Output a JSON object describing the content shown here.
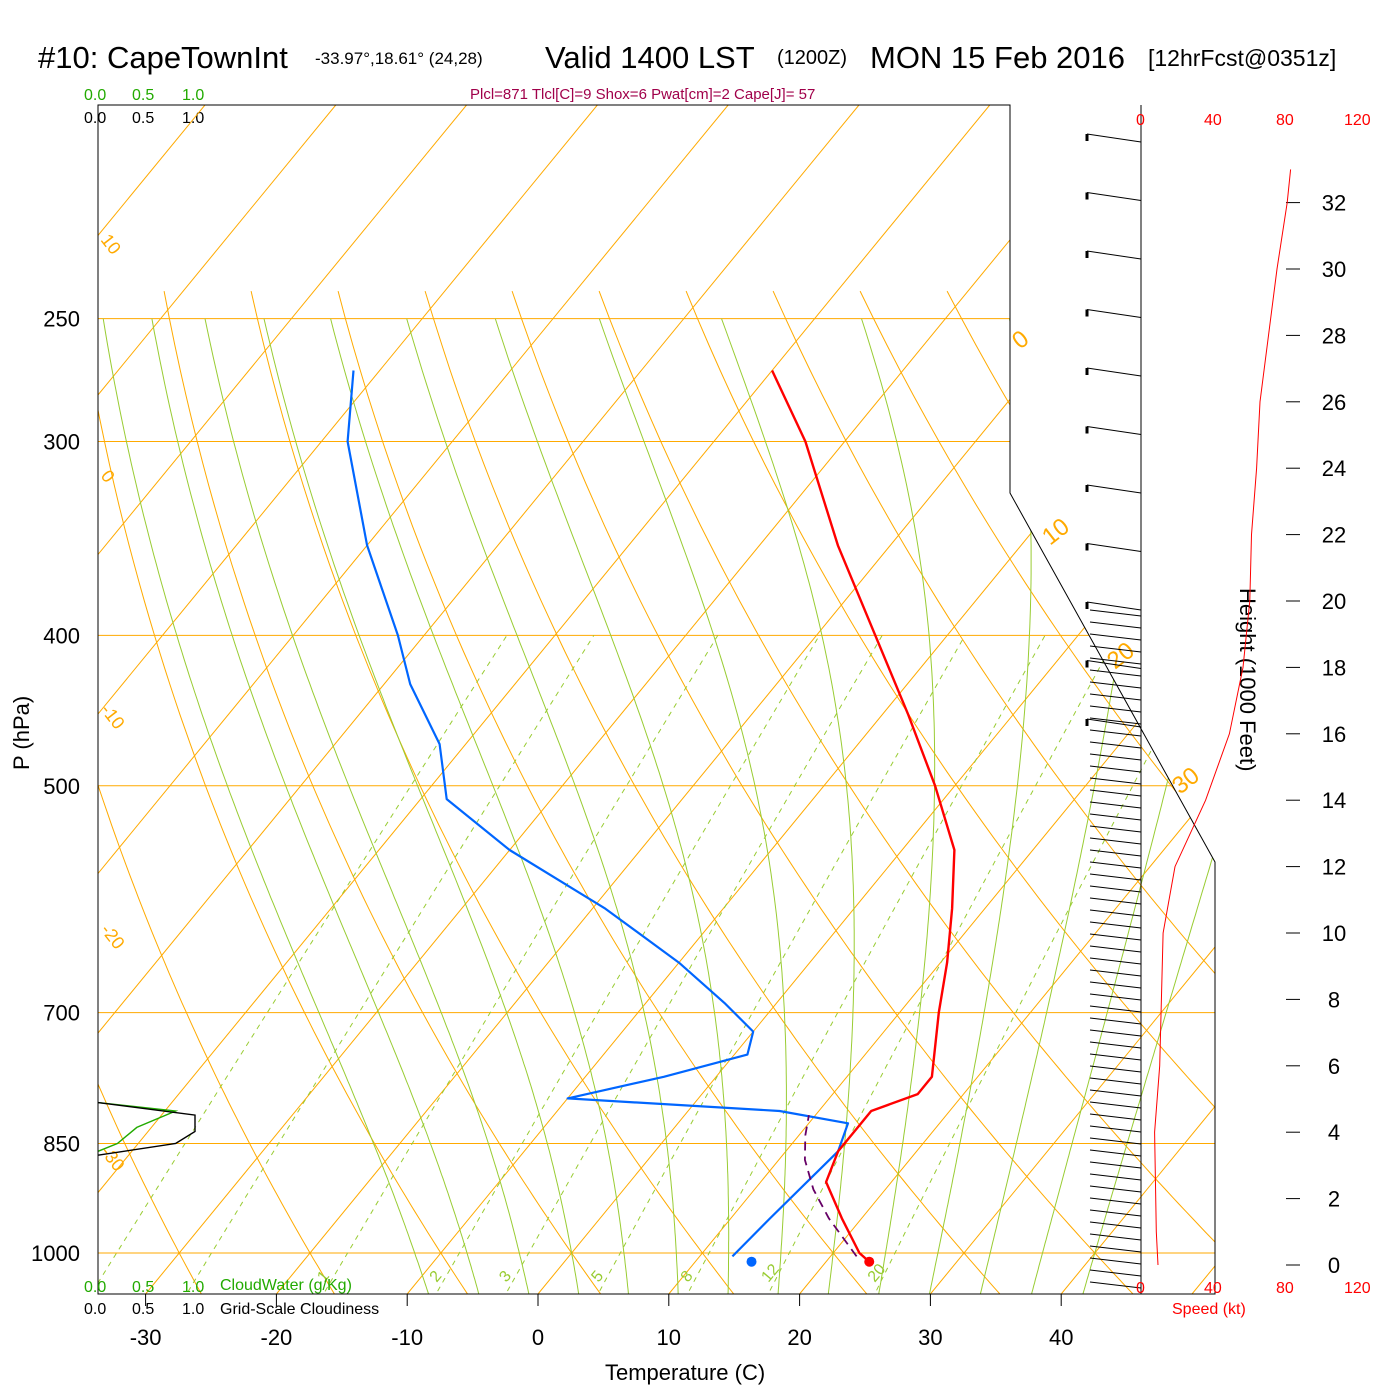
{
  "header": {
    "station": "#10: CapeTownInt",
    "coords": "-33.97°,18.61° (24,28)",
    "valid": "Valid 1400 LST",
    "zulu": "(1200Z)",
    "date": "MON 15 Feb 2016",
    "forecast": "[12hrFcst@0351z]",
    "params": "Plcl=871 Tlcl[C]=9 Shox=6 Pwat[cm]=2 Cape[J]= 57"
  },
  "colors": {
    "temperature": "#ff0000",
    "dewpoint": "#0066ff",
    "parcel": "#660066",
    "isotherm": "#ffaa00",
    "dry_adiabat": "#ffaa00",
    "moist_adiabat": "#99cc33",
    "mixing_ratio": "#99cc33",
    "cloud_water": "#22aa00",
    "cloudiness": "#000000",
    "speed": "#ff0000"
  },
  "top_scale": {
    "green": [
      "0.0",
      "0.5",
      "1.0"
    ],
    "black": [
      "0.0",
      "0.5",
      "1.0"
    ]
  },
  "bottom_scale": {
    "green": [
      "0.0",
      "0.5",
      "1.0"
    ],
    "black": [
      "0.0",
      "0.5",
      "1.0"
    ],
    "cloudwater_label": "CloudWater (g/Kg)",
    "cloudiness_label": "Grid-Scale Cloudiness"
  },
  "speed_scale": {
    "ticks": [
      "0",
      "40",
      "80",
      "120"
    ],
    "label": "Speed (kt)"
  },
  "isotherm_labels": [
    "10",
    "0",
    "-10",
    "-20",
    "-30",
    "0",
    "10",
    "20",
    "30"
  ],
  "mixing_ratio_labels": [
    "1",
    "2",
    "3",
    "5",
    "8",
    "12",
    "20"
  ],
  "chart_data": {
    "type": "line",
    "subtype": "skew-T log-P",
    "xlabel": "Temperature (C)",
    "ylabel": "P (hPa)",
    "y2label": "Height (1000 Feet)",
    "x_ticks": [
      -30,
      -20,
      -10,
      0,
      10,
      20,
      30,
      40
    ],
    "p_ticks": [
      250,
      300,
      400,
      500,
      700,
      850,
      1000
    ],
    "height_ticks": [
      0,
      2,
      4,
      6,
      8,
      10,
      12,
      14,
      16,
      18,
      20,
      22,
      24,
      26,
      28,
      30,
      32
    ],
    "temperature_profile": [
      {
        "p": 1013,
        "t": 23.3
      },
      {
        "p": 1000,
        "t": 22.0
      },
      {
        "p": 950,
        "t": 18.5
      },
      {
        "p": 900,
        "t": 15.0
      },
      {
        "p": 860,
        "t": 14.0
      },
      {
        "p": 810,
        "t": 14.0
      },
      {
        "p": 790,
        "t": 16.5
      },
      {
        "p": 770,
        "t": 16.5
      },
      {
        "p": 700,
        "t": 13.0
      },
      {
        "p": 650,
        "t": 10.5
      },
      {
        "p": 600,
        "t": 7.5
      },
      {
        "p": 550,
        "t": 4.0
      },
      {
        "p": 500,
        "t": -1.5
      },
      {
        "p": 450,
        "t": -8.0
      },
      {
        "p": 400,
        "t": -15.5
      },
      {
        "p": 350,
        "t": -24.0
      },
      {
        "p": 300,
        "t": -33.0
      },
      {
        "p": 270,
        "t": -40.0
      }
    ],
    "dewpoint_profile": [
      {
        "p": 1005,
        "t": 12.5
      },
      {
        "p": 950,
        "t": 13.0
      },
      {
        "p": 860,
        "t": 14.0
      },
      {
        "p": 825,
        "t": 13.0
      },
      {
        "p": 810,
        "t": 7.0
      },
      {
        "p": 795,
        "t": -10.0
      },
      {
        "p": 770,
        "t": -4.0
      },
      {
        "p": 745,
        "t": 1.0
      },
      {
        "p": 720,
        "t": 0.0
      },
      {
        "p": 690,
        "t": -4.0
      },
      {
        "p": 650,
        "t": -10.0
      },
      {
        "p": 600,
        "t": -19.0
      },
      {
        "p": 550,
        "t": -30.0
      },
      {
        "p": 510,
        "t": -38.0
      },
      {
        "p": 470,
        "t": -42.0
      },
      {
        "p": 430,
        "t": -48.0
      },
      {
        "p": 400,
        "t": -52.0
      },
      {
        "p": 350,
        "t": -60.0
      },
      {
        "p": 300,
        "t": -68.0
      },
      {
        "p": 270,
        "t": -72.0
      }
    ],
    "parcel_profile": [
      {
        "p": 1005,
        "t": 22.0
      },
      {
        "p": 950,
        "t": 17.5
      },
      {
        "p": 910,
        "t": 14.5
      },
      {
        "p": 871,
        "t": 12.0
      },
      {
        "p": 840,
        "t": 10.5
      },
      {
        "p": 815,
        "t": 9.5
      }
    ],
    "surface_temperature": {
      "p": 1013,
      "t": 23.3
    },
    "surface_dewpoint": {
      "p": 1013,
      "t": 14.3
    },
    "wind_speed_profile": [
      {
        "h": 0,
        "kt": 10
      },
      {
        "h": 1,
        "kt": 9
      },
      {
        "h": 4,
        "kt": 8
      },
      {
        "h": 6,
        "kt": 11
      },
      {
        "h": 8,
        "kt": 12
      },
      {
        "h": 10,
        "kt": 13
      },
      {
        "h": 12,
        "kt": 20
      },
      {
        "h": 14,
        "kt": 38
      },
      {
        "h": 16,
        "kt": 52
      },
      {
        "h": 18,
        "kt": 60
      },
      {
        "h": 20,
        "kt": 64
      },
      {
        "h": 22,
        "kt": 65
      },
      {
        "h": 24,
        "kt": 68
      },
      {
        "h": 26,
        "kt": 70
      },
      {
        "h": 28,
        "kt": 75
      },
      {
        "h": 30,
        "kt": 80
      },
      {
        "h": 32,
        "kt": 86
      },
      {
        "h": 33,
        "kt": 88
      }
    ],
    "cloud_water_profile": [
      {
        "p": 800,
        "v": 0.0
      },
      {
        "p": 810,
        "v": 0.8
      },
      {
        "p": 830,
        "v": 0.4
      },
      {
        "p": 850,
        "v": 0.2
      },
      {
        "p": 860,
        "v": 0.0
      }
    ],
    "cloudiness_profile": [
      {
        "p": 800,
        "v": 0.0
      },
      {
        "p": 815,
        "v": 1.0
      },
      {
        "p": 835,
        "v": 1.0
      },
      {
        "p": 850,
        "v": 0.8
      },
      {
        "p": 865,
        "v": 0.0
      }
    ]
  }
}
